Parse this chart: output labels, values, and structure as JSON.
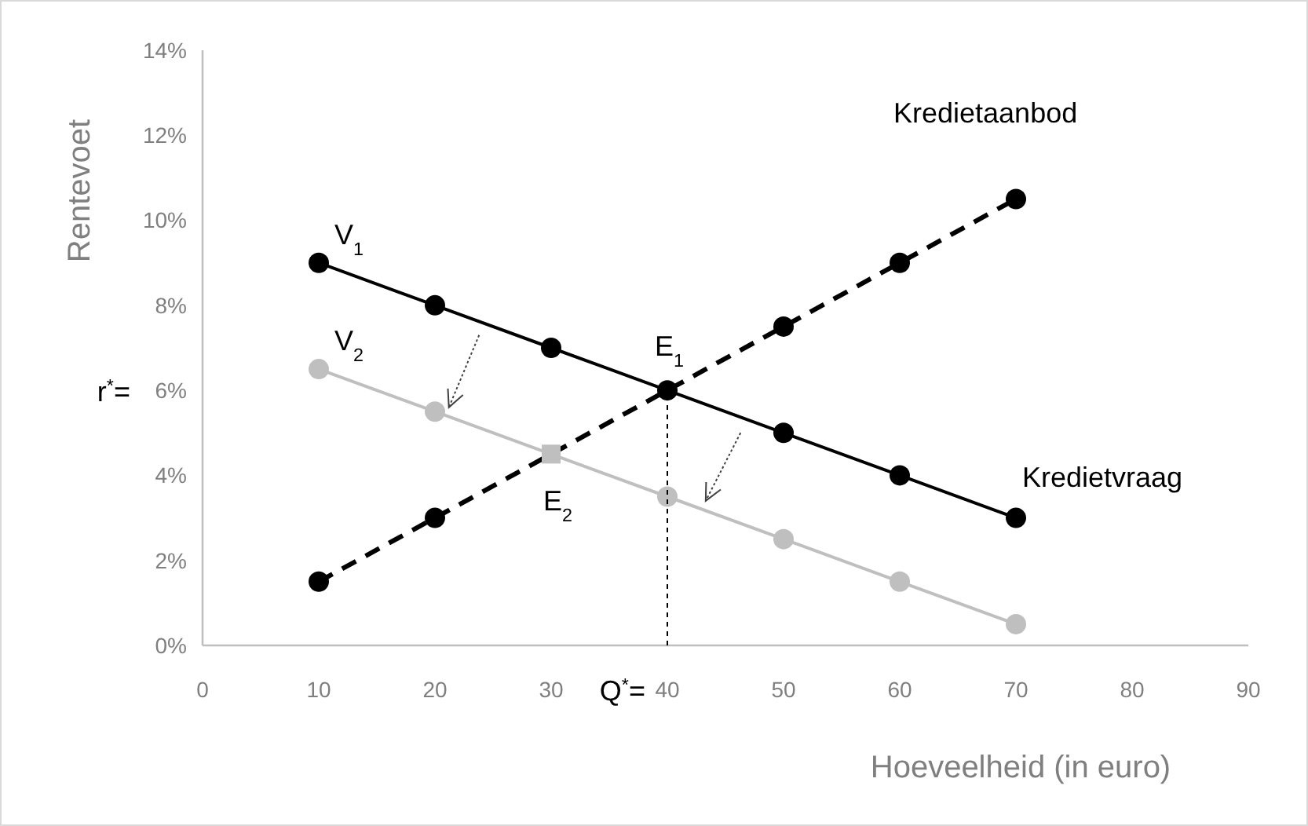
{
  "chart_data": {
    "type": "line",
    "xlabel": "Hoeveelheid (in euro)",
    "ylabel": "Rentevoet",
    "xlim": [
      0,
      90
    ],
    "xticks": [
      0,
      10,
      20,
      30,
      40,
      50,
      60,
      70,
      80,
      90
    ],
    "ylim": [
      0,
      14
    ],
    "yticks": [
      {
        "value": 0,
        "label": "0%"
      },
      {
        "value": 2,
        "label": "2%"
      },
      {
        "value": 4,
        "label": "4%"
      },
      {
        "value": 6,
        "label": "6%"
      },
      {
        "value": 8,
        "label": "8%"
      },
      {
        "value": 10,
        "label": "10%"
      },
      {
        "value": 12,
        "label": "12%"
      },
      {
        "value": 14,
        "label": "14%"
      }
    ],
    "series": [
      {
        "name": "V$_{1}$",
        "color": "#000000",
        "x": [
          10,
          20,
          30,
          40,
          50,
          60,
          70
        ],
        "values": [
          9,
          8,
          7,
          6,
          5,
          4,
          3
        ],
        "marker": "circle",
        "line_style": "solid"
      },
      {
        "name": "V$_{2}$",
        "color": "#bfbfbf",
        "x": [
          10,
          20,
          40,
          50,
          60,
          70
        ],
        "values": [
          6.5,
          5.5,
          3.5,
          2.5,
          1.5,
          0.5
        ],
        "marker": "circle",
        "line_style": "solid"
      },
      {
        "color": "#000000",
        "x": [
          10,
          20,
          50,
          60,
          70
        ],
        "values": [
          1.5,
          3,
          7.5,
          9,
          10.5
        ],
        "marker": "circle",
        "line_style": "dashed"
      },
      {
        "type": "scatter",
        "color": "#bfbfbf",
        "x": [
          30
        ],
        "values": [
          4.5
        ],
        "marker": "square"
      },
      {
        "color": "#000000",
        "x": [
          40,
          40
        ],
        "values": [
          0,
          6
        ],
        "marker": "none",
        "line_style": "dotted"
      }
    ],
    "annotations": [
      {
        "text": "Kredietaanbod",
        "x": 70,
        "y": 10.5
      },
      {
        "text": "Kredietvraag",
        "x": 70,
        "y": 3
      },
      {
        "text": "E$_{1}$",
        "x": 40,
        "y": 6
      },
      {
        "text": "E$_{2}$",
        "x": 30,
        "y": 4.5
      },
      "r$^{*}$=",
      "Q$^{*}$="
    ]
  }
}
